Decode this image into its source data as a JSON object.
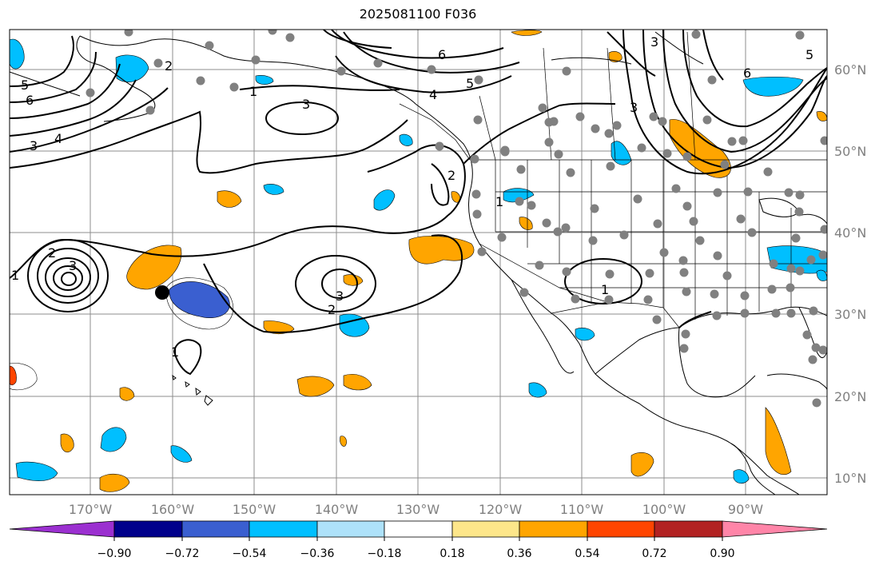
{
  "title": "2025081100 F036",
  "lon_labels": [
    "170°W",
    "160°W",
    "150°W",
    "140°W",
    "130°W",
    "120°W",
    "110°W",
    "100°W",
    "90°W"
  ],
  "lat_labels": [
    "60°N",
    "50°N",
    "40°N",
    "30°N",
    "20°N",
    "10°N"
  ],
  "colorbar": {
    "ticks": [
      "−0.90",
      "−0.72",
      "−0.54",
      "−0.36",
      "−0.18",
      "0.18",
      "0.36",
      "0.54",
      "0.72",
      "0.90"
    ],
    "colors": [
      "#9b30d0",
      "#00008b",
      "#3a5fd0",
      "#00bfff",
      "#aee2fa",
      "#ffffff",
      "#fde68a",
      "#ffa500",
      "#ff4500",
      "#b22222",
      "#ff85a8"
    ]
  },
  "contour_labels": [
    "1",
    "2",
    "3",
    "4",
    "5",
    "6"
  ],
  "colors": {
    "land": "#ffffff",
    "grid": "#8c8c8c",
    "label": "#808080",
    "station": "#808080",
    "contour": "#000000"
  }
}
